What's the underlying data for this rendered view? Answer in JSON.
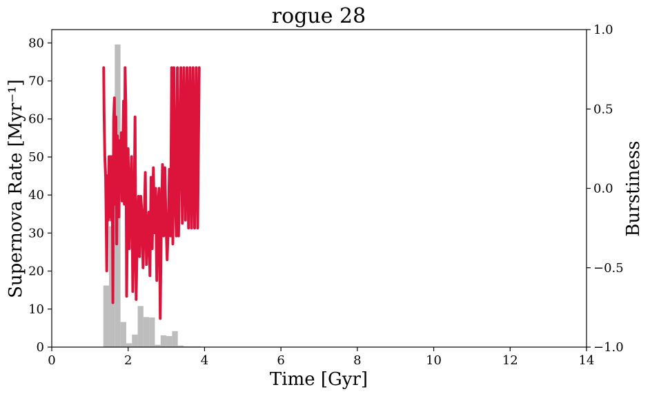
{
  "chart_data": {
    "type": "bar",
    "title": "rogue 28",
    "xlabel": "Time [Gyr]",
    "ylabel": "Supernova Rate [Myr⁻¹]",
    "y2label": "Burstiness",
    "xlim": [
      0,
      14
    ],
    "ylim": [
      0,
      83.5
    ],
    "y2lim": [
      -1.0,
      1.0
    ],
    "xticks": [
      0,
      2,
      4,
      6,
      8,
      10,
      12,
      14
    ],
    "xtick_labels": [
      "0",
      "2",
      "4",
      "6",
      "8",
      "10",
      "12",
      "14"
    ],
    "yticks": [
      0,
      10,
      20,
      30,
      40,
      50,
      60,
      70,
      80
    ],
    "ytick_labels": [
      "0",
      "10",
      "20",
      "30",
      "40",
      "50",
      "60",
      "70",
      "80"
    ],
    "y2ticks": [
      -1.0,
      -0.5,
      0.0,
      0.5,
      1.0
    ],
    "y2tick_labels": [
      "−1.0",
      "−0.5",
      "0.0",
      "0.5",
      "1.0"
    ],
    "grid": false,
    "colors": {
      "bars": "#bdbdbd",
      "line": "#dc143c",
      "axes": "#000000"
    },
    "series": [
      {
        "type": "bar",
        "axis": "left",
        "bin_width": 0.15,
        "x": [
          1.35,
          1.5,
          1.65,
          1.8,
          1.95,
          2.1,
          2.25,
          2.4,
          2.55,
          2.7,
          2.85,
          3.0,
          3.15,
          3.3,
          3.45,
          3.6,
          3.75
        ],
        "values": [
          16.2,
          31.8,
          79.6,
          6.6,
          1.0,
          3.3,
          10.8,
          7.9,
          7.8,
          0.6,
          3.1,
          2.9,
          4.2,
          0.4,
          0.2,
          0.2,
          0.2
        ]
      },
      {
        "type": "line",
        "axis": "right",
        "x": [
          1.36,
          1.37,
          1.39,
          1.41,
          1.42,
          1.44,
          1.46,
          1.48,
          1.5,
          1.52,
          1.54,
          1.56,
          1.58,
          1.6,
          1.62,
          1.64,
          1.66,
          1.68,
          1.7,
          1.72,
          1.74,
          1.76,
          1.78,
          1.8,
          1.82,
          1.84,
          1.86,
          1.88,
          1.9,
          1.92,
          1.94,
          1.96,
          1.98,
          2.0,
          2.03,
          2.06,
          2.09,
          2.12,
          2.15,
          2.18,
          2.21,
          2.24,
          2.27,
          2.3,
          2.33,
          2.36,
          2.39,
          2.42,
          2.45,
          2.48,
          2.51,
          2.54,
          2.57,
          2.6,
          2.63,
          2.66,
          2.69,
          2.72,
          2.75,
          2.78,
          2.81,
          2.84,
          2.87,
          2.9,
          2.93,
          2.96,
          2.99,
          3.02,
          3.05,
          3.08,
          3.11,
          3.14,
          3.17,
          3.2,
          3.23,
          3.26,
          3.29,
          3.32,
          3.35,
          3.38,
          3.42,
          3.46,
          3.5,
          3.54,
          3.58,
          3.62,
          3.66,
          3.7,
          3.74,
          3.78,
          3.82,
          3.86
        ],
        "values": [
          0.76,
          0.5,
          0.2,
          0.07,
          -0.1,
          -0.52,
          0.08,
          -0.2,
          0.2,
          -0.18,
          0.2,
          -0.2,
          0.2,
          -0.72,
          0.43,
          0.57,
          -0.1,
          0.45,
          -0.35,
          0.33,
          0.2,
          -0.18,
          0.3,
          0.05,
          0.35,
          -0.08,
          0.24,
          0.55,
          -0.1,
          0.76,
          0.52,
          -0.68,
          -0.2,
          0.25,
          -0.38,
          0.0,
          0.2,
          -0.65,
          -0.3,
          0.45,
          -0.7,
          -0.28,
          -0.05,
          -0.43,
          -0.05,
          -0.15,
          -0.5,
          -0.2,
          0.1,
          -0.48,
          -0.3,
          -0.15,
          -0.55,
          0.07,
          -0.38,
          0.13,
          -0.28,
          0.0,
          -0.58,
          -0.1,
          0.0,
          -0.82,
          -0.2,
          0.15,
          -0.3,
          0.13,
          -0.2,
          -0.45,
          -0.26,
          0.12,
          -0.3,
          0.76,
          -0.35,
          0.76,
          0.0,
          -0.3,
          0.76,
          -0.3,
          0.15,
          0.76,
          -0.22,
          0.76,
          -0.2,
          0.76,
          -0.25,
          0.76,
          -0.25,
          0.76,
          -0.25,
          0.76,
          -0.25,
          0.76
        ]
      }
    ]
  }
}
